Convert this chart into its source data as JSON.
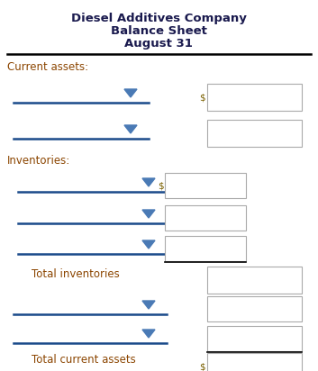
{
  "title1": "Diesel Additives Company",
  "title2": "Balance Sheet",
  "title3": "August 31",
  "title_color": "#1a1a4e",
  "section1_label": "Current assets:",
  "inventories_label": "Inventories:",
  "total_inventories_label": "Total inventories",
  "total_current_assets_label": "Total current assets",
  "label_color": "#8B4500",
  "dropdown_color": "#4a7ab5",
  "line_color": "#1a4a8a",
  "box_border_color": "#aaaaaa",
  "dollar_color": "#7a6000",
  "bg_color": "#ffffff",
  "figsize": [
    3.53,
    4.12
  ],
  "dpi": 100,
  "title_fontsize": 9.5,
  "label_fontsize": 8.5
}
